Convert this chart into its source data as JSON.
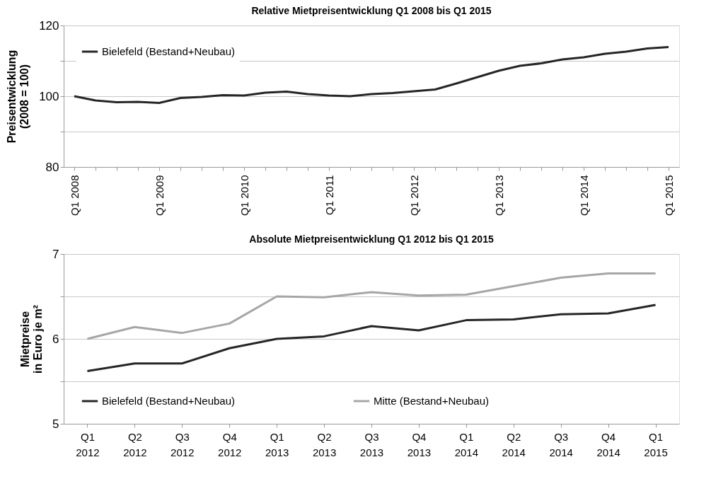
{
  "chart_data": [
    {
      "type": "line",
      "title": "Relative Mietpreisentwicklung Q1 2008 bis Q1 2015",
      "ylabel": "Preisentwicklung\n(2008 = 100)",
      "categories": [
        "Q1 2008",
        null,
        null,
        null,
        "Q1 2009",
        null,
        null,
        null,
        "Q1 2010",
        null,
        null,
        null,
        "Q1 2011",
        null,
        null,
        null,
        "Q1 2012",
        null,
        null,
        null,
        "Q1 2013",
        null,
        null,
        null,
        "Q1 2014",
        null,
        null,
        null,
        "Q1 2015"
      ],
      "series": [
        {
          "name": "Bielefeld (Bestand+Neubau)",
          "color": "#262626",
          "values": [
            100,
            98.8,
            98.3,
            98.4,
            98.1,
            99.5,
            99.8,
            100.3,
            100.2,
            101.0,
            101.3,
            100.6,
            100.2,
            100.0,
            100.6,
            100.9,
            101.4,
            101.9,
            103.6,
            105.4,
            107.2,
            108.6,
            109.3,
            110.4,
            111.0,
            112.0,
            112.6,
            113.5,
            113.9
          ]
        }
      ],
      "ylim": [
        80,
        120
      ],
      "yticks": [
        80,
        {
          "value": 90,
          "label": null
        },
        100,
        {
          "value": 110,
          "label": null
        },
        120
      ],
      "grid": "y",
      "legend": "top left",
      "marker": "none",
      "line_style": "solid"
    },
    {
      "type": "line",
      "title": "Absolute Mietpreisentwicklung Q1 2012 bis Q1 2015",
      "ylabel": "Mietpreise\nin Euro je m²",
      "categories": [
        "Q1 2012",
        "Q2 2012",
        "Q3 2012",
        "Q4 2012",
        "Q1 2013",
        "Q2 2013",
        "Q3 2013",
        "Q4 2013",
        "Q1 2014",
        "Q2 2014",
        "Q3 2014",
        "Q4 2014",
        "Q1 2015"
      ],
      "series": [
        {
          "name": "Bielefeld (Bestand+Neubau)",
          "color": "#262626",
          "values": [
            5.62,
            5.71,
            5.71,
            5.89,
            6.0,
            6.03,
            6.15,
            6.1,
            6.22,
            6.23,
            6.29,
            6.3,
            6.4
          ]
        },
        {
          "name": "Mitte (Bestand+Neubau)",
          "color": "#a6a6a6",
          "values": [
            6.0,
            6.14,
            6.07,
            6.18,
            6.5,
            6.49,
            6.55,
            6.51,
            6.52,
            6.62,
            6.72,
            6.77,
            6.77
          ]
        }
      ],
      "ylim": [
        5,
        7
      ],
      "yticks": [
        5,
        {
          "value": 5.5,
          "label": null
        },
        6,
        {
          "value": 6.5,
          "label": null
        },
        7
      ],
      "grid": "y",
      "legend": "bottom left",
      "marker": "none",
      "line_style": "solid"
    }
  ]
}
